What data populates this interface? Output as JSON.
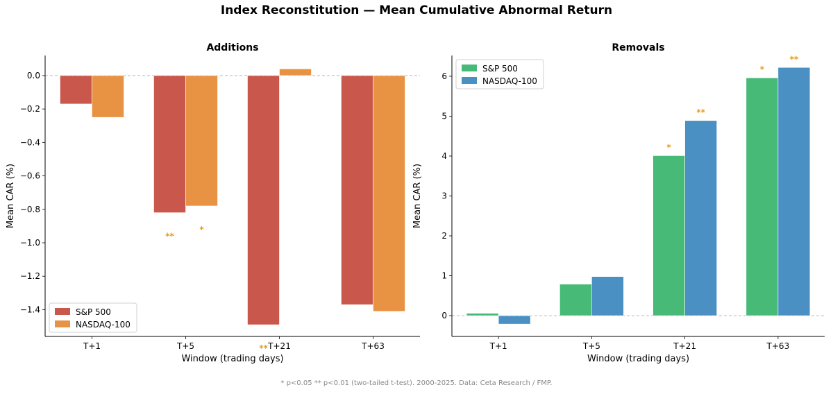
{
  "title": "Index Reconstitution — Mean Cumulative Abnormal Return",
  "footnote": "* p<0.05   ** p<0.01 (two-tailed t-test). 2000-2025. Data: Ceta Research / FMP.",
  "chart_data": [
    {
      "type": "bar",
      "title": "Additions",
      "xlabel": "Window (trading days)",
      "ylabel": "Mean CAR (%)",
      "categories": [
        "T+1",
        "T+5",
        "T+21",
        "T+63"
      ],
      "series": [
        {
          "name": "S&P 500",
          "color": "#c9574b",
          "values": [
            -0.17,
            -0.82,
            -1.49,
            -1.37
          ],
          "significance": [
            "",
            "**",
            "**",
            ""
          ]
        },
        {
          "name": "NASDAQ-100",
          "color": "#e89243",
          "values": [
            -0.25,
            -0.78,
            0.04,
            -1.41
          ],
          "significance": [
            "",
            "*",
            "",
            ""
          ]
        }
      ],
      "ylim": [
        -1.56,
        0.12
      ],
      "yticks": [
        0.0,
        -0.2,
        -0.4,
        -0.6,
        -0.8,
        -1.0,
        -1.2,
        -1.4
      ],
      "legend": "lower-left",
      "zero_line": true,
      "annotation_color": "#e89b1c"
    },
    {
      "type": "bar",
      "title": "Removals",
      "xlabel": "Window (trading days)",
      "ylabel": "Mean CAR (%)",
      "categories": [
        "T+1",
        "T+5",
        "T+21",
        "T+63"
      ],
      "series": [
        {
          "name": "S&P 500",
          "color": "#47ba78",
          "values": [
            0.06,
            0.79,
            4.01,
            5.96
          ],
          "significance": [
            "",
            "",
            "*",
            "*"
          ]
        },
        {
          "name": "NASDAQ-100",
          "color": "#4a90c2",
          "values": [
            -0.21,
            0.98,
            4.89,
            6.22
          ],
          "significance": [
            "",
            "",
            "**",
            "**"
          ]
        }
      ],
      "ylim": [
        -0.52,
        6.52
      ],
      "yticks": [
        0,
        1,
        2,
        3,
        4,
        5,
        6
      ],
      "legend": "upper-left",
      "zero_line": true,
      "annotation_color": "#e89b1c"
    }
  ]
}
